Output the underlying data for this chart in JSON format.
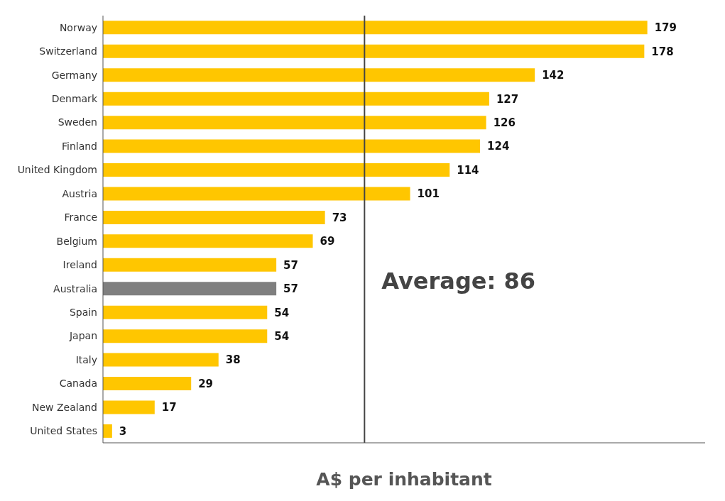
{
  "chart_data": {
    "type": "bar",
    "orientation": "horizontal",
    "xlabel": "A$ per inhabitant",
    "categories": [
      "Norway",
      "Switzerland",
      "Germany",
      "Denmark",
      "Sweden",
      "Finland",
      "United Kingdom",
      "Austria",
      "France",
      "Belgium",
      "Ireland",
      "Australia",
      "Spain",
      "Japan",
      "Italy",
      "Canada",
      "New Zealand",
      "United States"
    ],
    "values": [
      179,
      178,
      142,
      127,
      126,
      124,
      114,
      101,
      73,
      69,
      57,
      57,
      54,
      54,
      38,
      29,
      17,
      3
    ],
    "colors": [
      "#ffc600",
      "#ffc600",
      "#ffc600",
      "#ffc600",
      "#ffc600",
      "#ffc600",
      "#ffc600",
      "#ffc600",
      "#ffc600",
      "#ffc600",
      "#ffc600",
      "#7f7f7f",
      "#ffc600",
      "#ffc600",
      "#ffc600",
      "#ffc600",
      "#ffc600",
      "#ffc600"
    ],
    "xlim": [
      0,
      198
    ],
    "tick_labels": "y",
    "data_labels": true,
    "grid": false,
    "legend": false,
    "ref_lines": [
      {
        "axis": "x",
        "value": 86,
        "label": "Average: 86",
        "color": "#444444"
      }
    ]
  }
}
